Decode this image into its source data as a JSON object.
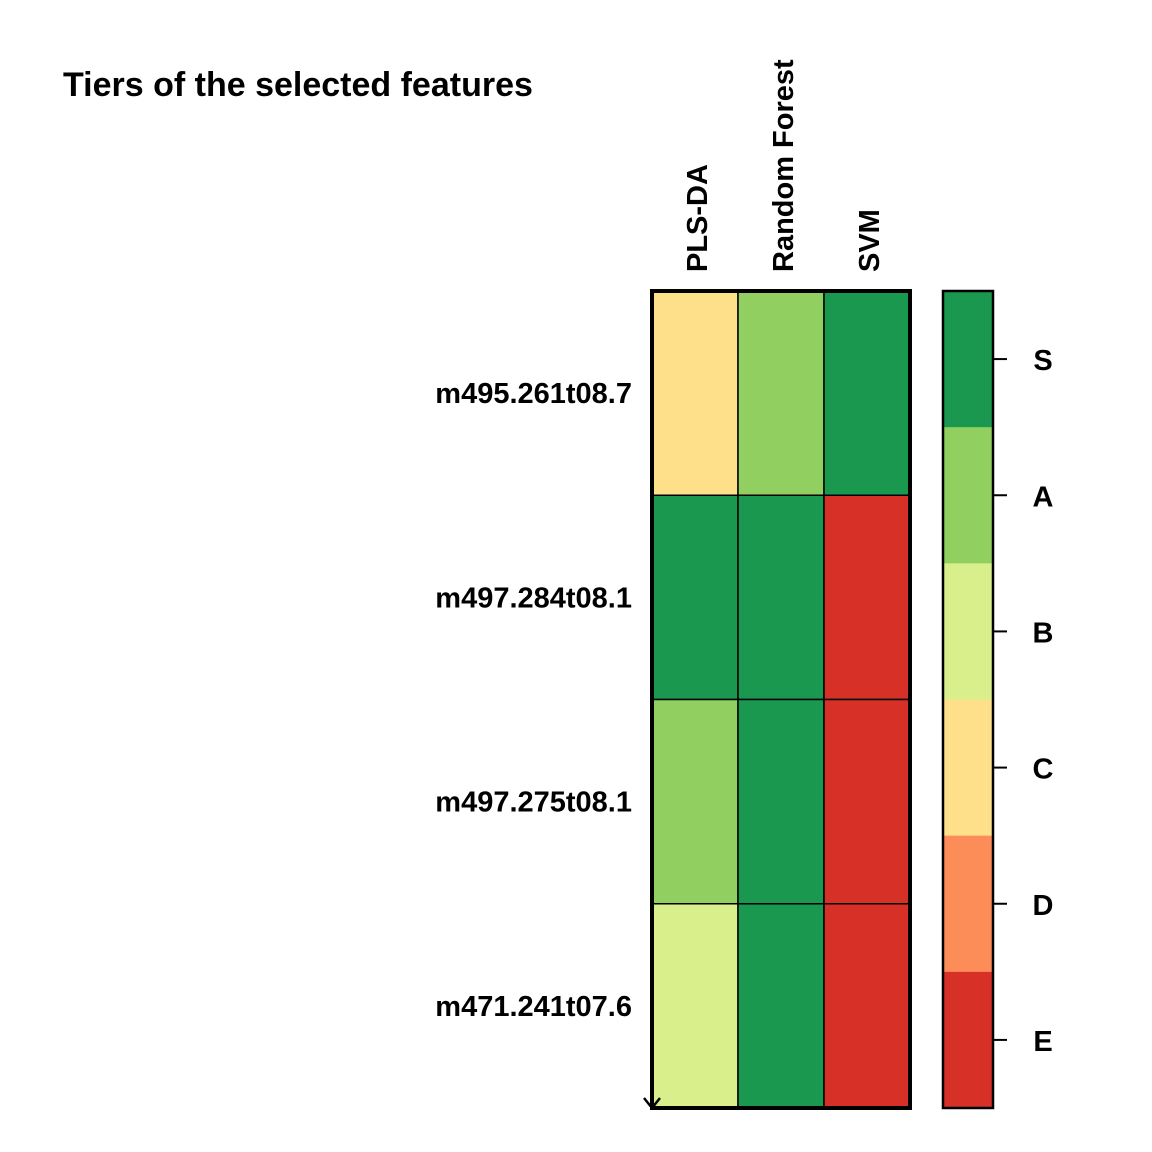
{
  "chart_data": {
    "type": "heatmap",
    "title": "Tiers of the selected features",
    "columns": [
      "PLS-DA",
      "Random Forest",
      "SVM"
    ],
    "rows": [
      "m495.261t08.7",
      "m497.284t08.1",
      "m497.275t08.1",
      "m471.241t07.6"
    ],
    "values": [
      [
        "C",
        "A",
        "S"
      ],
      [
        "S",
        "S",
        "E"
      ],
      [
        "A",
        "S",
        "E"
      ],
      [
        "B",
        "S",
        "E"
      ]
    ],
    "legend": {
      "levels": [
        "S",
        "A",
        "B",
        "C",
        "D",
        "E"
      ],
      "colors": {
        "S": "#1A9850",
        "A": "#91CF60",
        "B": "#D9EF8B",
        "C": "#FEE08B",
        "D": "#FC8D59",
        "E": "#D73027"
      },
      "placement": "right"
    }
  }
}
